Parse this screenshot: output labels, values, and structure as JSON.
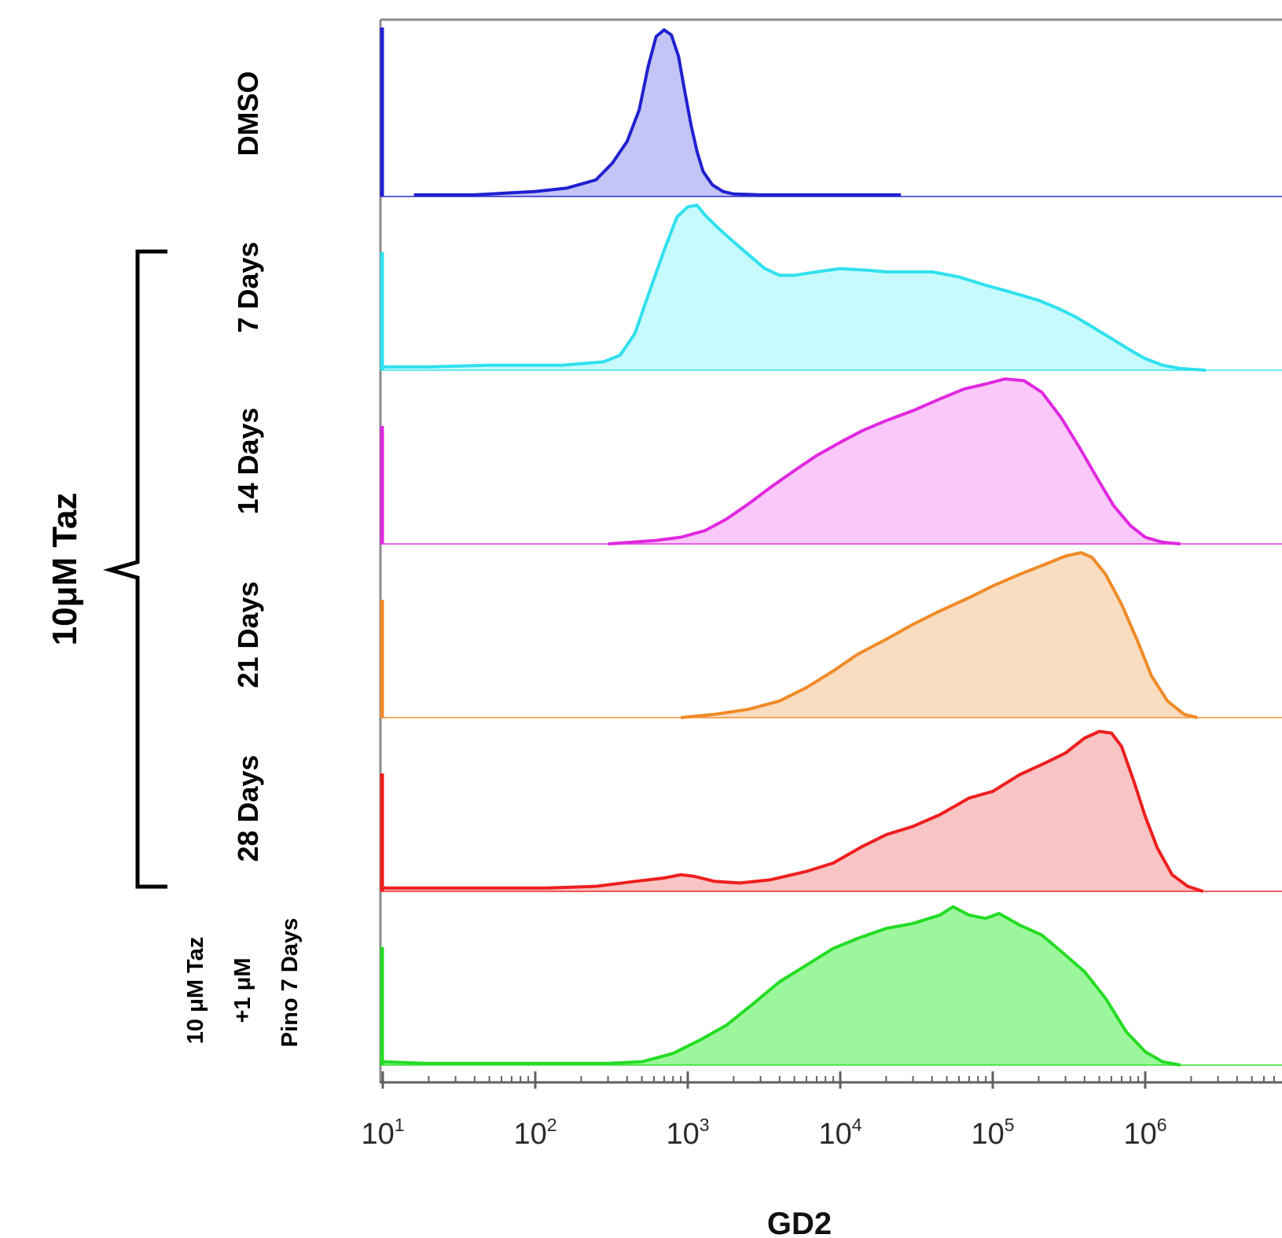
{
  "chart_data": {
    "type": "area",
    "subtype": "stacked flow-cytometry histograms (ridgeline)",
    "title": "",
    "xlabel": "GD2",
    "ylabel": "",
    "x_scale": "log10",
    "xlim": [
      7,
      10000000
    ],
    "x_ticks": [
      {
        "value": 10,
        "base": "10",
        "exp": "1"
      },
      {
        "value": 100,
        "base": "10",
        "exp": "2"
      },
      {
        "value": 1000,
        "base": "10",
        "exp": "3"
      },
      {
        "value": 10000,
        "base": "10",
        "exp": "4"
      },
      {
        "value": 100000,
        "base": "10",
        "exp": "5"
      },
      {
        "value": 1000000,
        "base": "10",
        "exp": "6"
      },
      {
        "value": 10000000,
        "base": "10",
        "exp": ""
      }
    ],
    "group_label": "10μM Taz",
    "grid": false,
    "legend": "none",
    "series": [
      {
        "label_lines": [
          "DMSO"
        ],
        "stroke": "#2020d0",
        "fill": "#c4c4f6",
        "points": [
          [
            16,
            0.01
          ],
          [
            40,
            0.01
          ],
          [
            63,
            0.02
          ],
          [
            100,
            0.03
          ],
          [
            160,
            0.05
          ],
          [
            250,
            0.1
          ],
          [
            320,
            0.2
          ],
          [
            400,
            0.33
          ],
          [
            480,
            0.52
          ],
          [
            550,
            0.78
          ],
          [
            620,
            0.96
          ],
          [
            700,
            1.0
          ],
          [
            780,
            0.97
          ],
          [
            870,
            0.84
          ],
          [
            960,
            0.62
          ],
          [
            1050,
            0.43
          ],
          [
            1150,
            0.27
          ],
          [
            1260,
            0.15
          ],
          [
            1450,
            0.07
          ],
          [
            1700,
            0.03
          ],
          [
            2000,
            0.015
          ],
          [
            3000,
            0.01
          ],
          [
            5000,
            0.01
          ],
          [
            25000,
            0.01
          ]
        ]
      },
      {
        "label_lines": [
          "7 Days"
        ],
        "stroke": "#30e0ee",
        "fill": "#c6fafc",
        "points": [
          [
            8,
            0.02
          ],
          [
            20,
            0.02
          ],
          [
            50,
            0.03
          ],
          [
            150,
            0.03
          ],
          [
            280,
            0.05
          ],
          [
            360,
            0.09
          ],
          [
            450,
            0.22
          ],
          [
            550,
            0.45
          ],
          [
            700,
            0.72
          ],
          [
            850,
            0.92
          ],
          [
            1000,
            0.98
          ],
          [
            1150,
            0.99
          ],
          [
            1300,
            0.93
          ],
          [
            1600,
            0.85
          ],
          [
            2000,
            0.77
          ],
          [
            2600,
            0.68
          ],
          [
            3200,
            0.61
          ],
          [
            4000,
            0.57
          ],
          [
            5000,
            0.57
          ],
          [
            7000,
            0.59
          ],
          [
            10000,
            0.61
          ],
          [
            15000,
            0.6
          ],
          [
            20000,
            0.59
          ],
          [
            28000,
            0.59
          ],
          [
            40000,
            0.59
          ],
          [
            60000,
            0.56
          ],
          [
            90000,
            0.51
          ],
          [
            130000,
            0.47
          ],
          [
            200000,
            0.42
          ],
          [
            270000,
            0.37
          ],
          [
            350000,
            0.32
          ],
          [
            450000,
            0.26
          ],
          [
            600000,
            0.19
          ],
          [
            800000,
            0.12
          ],
          [
            1000000,
            0.07
          ],
          [
            1300000,
            0.03
          ],
          [
            1700000,
            0.01
          ],
          [
            2500000,
            0.0
          ]
        ]
      },
      {
        "label_lines": [
          "14 Days"
        ],
        "stroke": "#e028e0",
        "fill": "#fbc8fb",
        "points": [
          [
            300,
            0.0
          ],
          [
            600,
            0.02
          ],
          [
            900,
            0.04
          ],
          [
            1300,
            0.08
          ],
          [
            1800,
            0.15
          ],
          [
            2500,
            0.24
          ],
          [
            3500,
            0.34
          ],
          [
            5000,
            0.44
          ],
          [
            7000,
            0.53
          ],
          [
            10000,
            0.61
          ],
          [
            14000,
            0.68
          ],
          [
            20000,
            0.74
          ],
          [
            30000,
            0.8
          ],
          [
            45000,
            0.87
          ],
          [
            65000,
            0.93
          ],
          [
            90000,
            0.96
          ],
          [
            120000,
            0.99
          ],
          [
            160000,
            0.98
          ],
          [
            210000,
            0.91
          ],
          [
            280000,
            0.76
          ],
          [
            370000,
            0.58
          ],
          [
            480000,
            0.4
          ],
          [
            620000,
            0.23
          ],
          [
            800000,
            0.11
          ],
          [
            1000000,
            0.04
          ],
          [
            1300000,
            0.01
          ],
          [
            1700000,
            0.0
          ]
        ]
      },
      {
        "label_lines": [
          "21 Days"
        ],
        "stroke": "#f08a28",
        "fill": "#fadcc0",
        "points": [
          [
            900,
            0.0
          ],
          [
            1500,
            0.02
          ],
          [
            2500,
            0.05
          ],
          [
            4000,
            0.1
          ],
          [
            6000,
            0.18
          ],
          [
            9000,
            0.28
          ],
          [
            13000,
            0.38
          ],
          [
            20000,
            0.47
          ],
          [
            30000,
            0.56
          ],
          [
            45000,
            0.64
          ],
          [
            70000,
            0.72
          ],
          [
            100000,
            0.79
          ],
          [
            150000,
            0.86
          ],
          [
            220000,
            0.92
          ],
          [
            300000,
            0.97
          ],
          [
            380000,
            0.99
          ],
          [
            450000,
            0.96
          ],
          [
            550000,
            0.86
          ],
          [
            700000,
            0.68
          ],
          [
            900000,
            0.45
          ],
          [
            1100000,
            0.25
          ],
          [
            1400000,
            0.1
          ],
          [
            1800000,
            0.02
          ],
          [
            2200000,
            0.0
          ]
        ]
      },
      {
        "label_lines": [
          "28 Days"
        ],
        "stroke": "#ee1e1e",
        "fill": "#f8c4c4",
        "points": [
          [
            8,
            0.02
          ],
          [
            50,
            0.02
          ],
          [
            120,
            0.02
          ],
          [
            250,
            0.03
          ],
          [
            450,
            0.06
          ],
          [
            700,
            0.08
          ],
          [
            900,
            0.1
          ],
          [
            1100,
            0.09
          ],
          [
            1500,
            0.06
          ],
          [
            2200,
            0.05
          ],
          [
            3500,
            0.07
          ],
          [
            6000,
            0.12
          ],
          [
            9000,
            0.17
          ],
          [
            14000,
            0.27
          ],
          [
            20000,
            0.34
          ],
          [
            30000,
            0.39
          ],
          [
            45000,
            0.46
          ],
          [
            70000,
            0.56
          ],
          [
            100000,
            0.6
          ],
          [
            150000,
            0.7
          ],
          [
            220000,
            0.77
          ],
          [
            300000,
            0.83
          ],
          [
            400000,
            0.92
          ],
          [
            500000,
            0.96
          ],
          [
            600000,
            0.95
          ],
          [
            700000,
            0.87
          ],
          [
            850000,
            0.65
          ],
          [
            1000000,
            0.45
          ],
          [
            1200000,
            0.26
          ],
          [
            1500000,
            0.1
          ],
          [
            1900000,
            0.03
          ],
          [
            2400000,
            0.0
          ]
        ]
      },
      {
        "label_lines": [
          "10 μM Taz",
          "+1 μM",
          "Pino 7 Days"
        ],
        "stroke": "#24dc24",
        "fill": "#9cf79c",
        "points": [
          [
            8,
            0.02
          ],
          [
            20,
            0.01
          ],
          [
            100,
            0.01
          ],
          [
            300,
            0.01
          ],
          [
            500,
            0.02
          ],
          [
            800,
            0.07
          ],
          [
            1200,
            0.15
          ],
          [
            1800,
            0.24
          ],
          [
            2700,
            0.37
          ],
          [
            4000,
            0.5
          ],
          [
            6000,
            0.6
          ],
          [
            9000,
            0.7
          ],
          [
            13000,
            0.76
          ],
          [
            20000,
            0.82
          ],
          [
            30000,
            0.85
          ],
          [
            45000,
            0.9
          ],
          [
            55000,
            0.95
          ],
          [
            70000,
            0.9
          ],
          [
            90000,
            0.88
          ],
          [
            110000,
            0.91
          ],
          [
            150000,
            0.84
          ],
          [
            210000,
            0.78
          ],
          [
            300000,
            0.66
          ],
          [
            400000,
            0.56
          ],
          [
            550000,
            0.4
          ],
          [
            750000,
            0.2
          ],
          [
            1000000,
            0.08
          ],
          [
            1300000,
            0.02
          ],
          [
            1700000,
            0.0
          ]
        ]
      }
    ]
  }
}
